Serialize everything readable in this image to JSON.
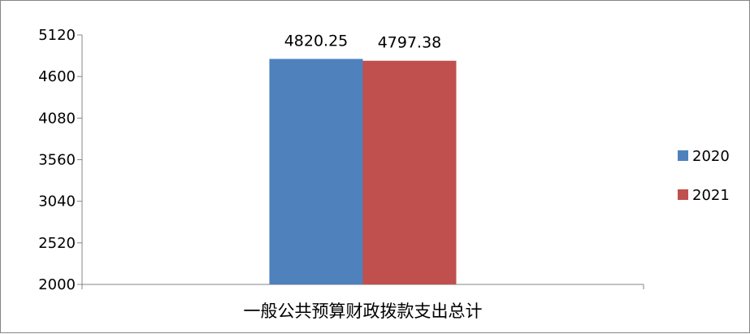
{
  "chart_data": {
    "type": "bar",
    "title": "",
    "xlabel": "",
    "ylabel": "",
    "categories": [
      "一般公共预算财政拨款支出总计"
    ],
    "series": [
      {
        "name": "2020",
        "values": [
          4820.25
        ],
        "color": "#4F81BD"
      },
      {
        "name": "2021",
        "values": [
          4797.38
        ],
        "color": "#C0504D"
      }
    ],
    "ylim": [
      2000,
      5120
    ],
    "yticks": [
      2000,
      2520,
      3040,
      3560,
      4080,
      4600,
      5120
    ],
    "grid": false,
    "legend_position": "right",
    "data_labels": [
      "4820.25",
      "4797.38"
    ]
  }
}
